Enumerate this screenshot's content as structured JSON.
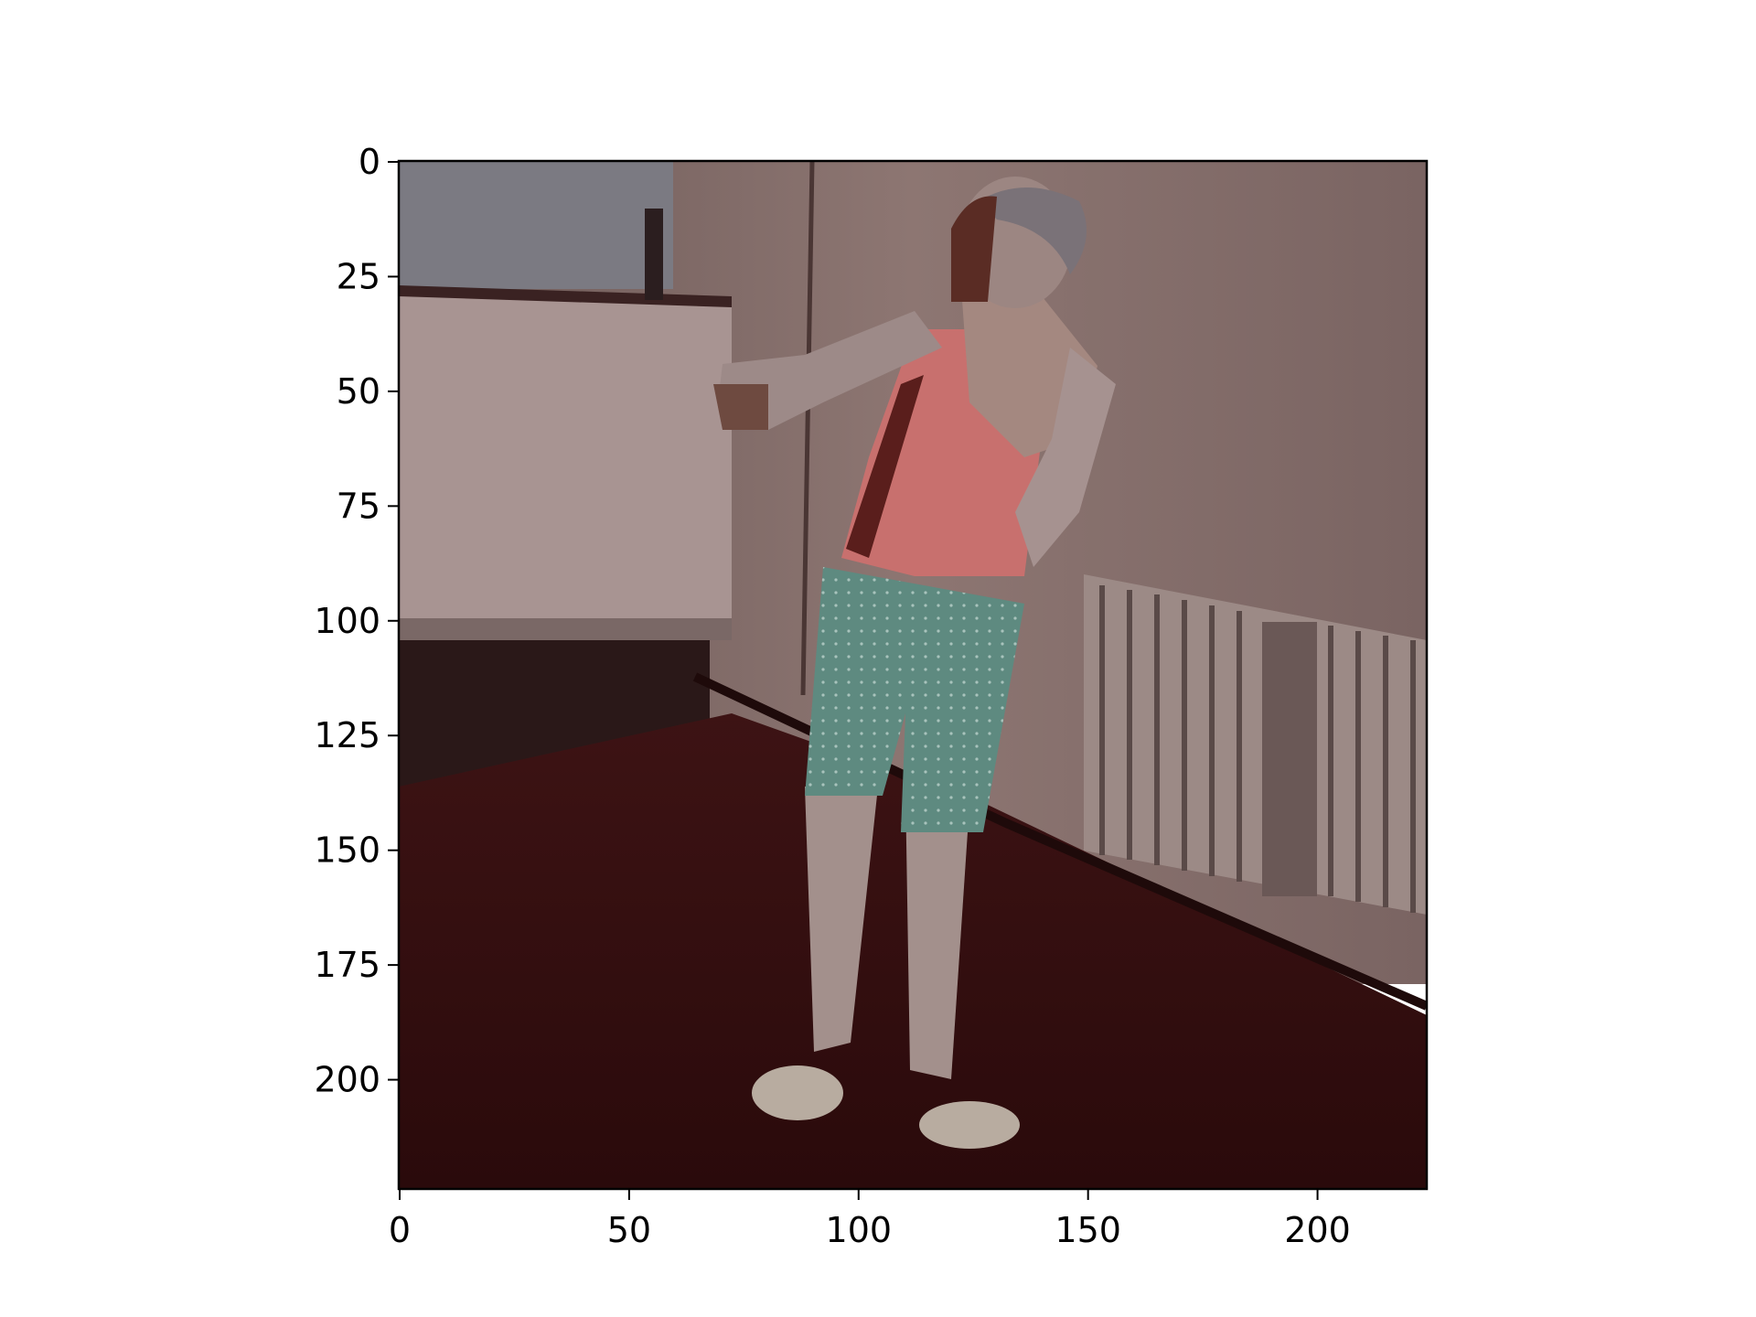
{
  "figure": {
    "image_description_icon": "photo-person-standing-indoors",
    "axes": {
      "x": {
        "ticks": [
          "0",
          "50",
          "100",
          "150",
          "200"
        ],
        "values": [
          0,
          50,
          100,
          150,
          200
        ],
        "range": [
          0,
          224
        ]
      },
      "y": {
        "ticks": [
          "0",
          "25",
          "50",
          "75",
          "100",
          "125",
          "150",
          "175",
          "200"
        ],
        "values": [
          0,
          25,
          50,
          75,
          100,
          125,
          150,
          175,
          200
        ],
        "range": [
          0,
          224
        ]
      }
    },
    "colors": {
      "wall": "#8a7470",
      "floor": "#3a0f10",
      "shirt": "#c9716f",
      "shorts": "#5f8a80",
      "skin": "#a08a84",
      "ceiling": "#7d7d85"
    }
  }
}
